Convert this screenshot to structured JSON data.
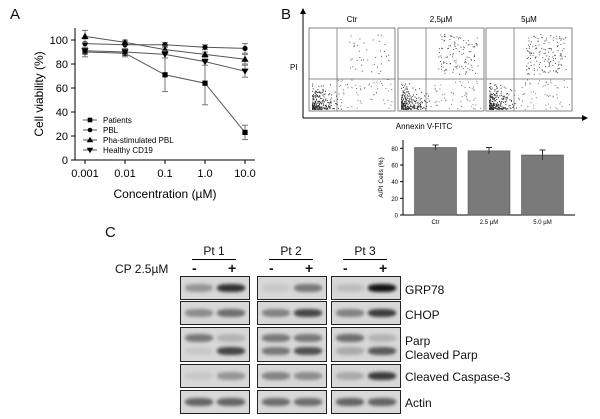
{
  "panels": {
    "a": "A",
    "b": "B",
    "c": "C"
  },
  "chart_data": [
    {
      "type": "line",
      "panel": "A",
      "x": [
        0.001,
        0.01,
        0.1,
        1.0,
        10.0
      ],
      "x_tick_labels": [
        "0.001",
        "0.01",
        "0.1",
        "1.0",
        "10.0"
      ],
      "xscale": "log",
      "xlabel": "Concentration (µM)",
      "ylabel": "Cell viability (%)",
      "ylim": [
        0,
        110
      ],
      "y_ticks": [
        0,
        20,
        40,
        60,
        80,
        100
      ],
      "legend_position": "bottom-left",
      "series": [
        {
          "name": "Patients",
          "marker": "square",
          "values": [
            90,
            89,
            71,
            64,
            23
          ]
        },
        {
          "name": "PBL",
          "marker": "circle",
          "values": [
            97,
            96,
            96,
            94,
            93
          ]
        },
        {
          "name": "Pha-stimulated PBL",
          "marker": "triangle-up",
          "values": [
            103,
            98,
            92,
            88,
            84
          ]
        },
        {
          "name": "Healthy CD19",
          "marker": "triangle-down",
          "values": [
            91,
            90,
            88,
            82,
            74
          ]
        }
      ]
    },
    {
      "type": "bar",
      "panel": "B",
      "categories": [
        "Ctr",
        "2.5 µM",
        "5.0 µM"
      ],
      "values": [
        81,
        77,
        72
      ],
      "ylabel": "A/PI Cells (%)",
      "ylim": [
        0,
        90
      ],
      "y_ticks": [
        0,
        20,
        40,
        60,
        80
      ]
    }
  ],
  "flow": {
    "titles": [
      "Ctr",
      "2,5µM",
      "5µM"
    ],
    "xlabel": "Annexin V-FITC",
    "ylabel": "PI"
  },
  "western": {
    "treatment_label": "CP 2.5µM",
    "signs": [
      "-",
      "+"
    ],
    "patients": [
      "Pt 1",
      "Pt 2",
      "Pt 3"
    ],
    "rows": [
      "GRP78",
      "CHOP",
      "Parp",
      "Cleaved Parp",
      "Cleaved Caspase-3",
      "Actin"
    ]
  }
}
